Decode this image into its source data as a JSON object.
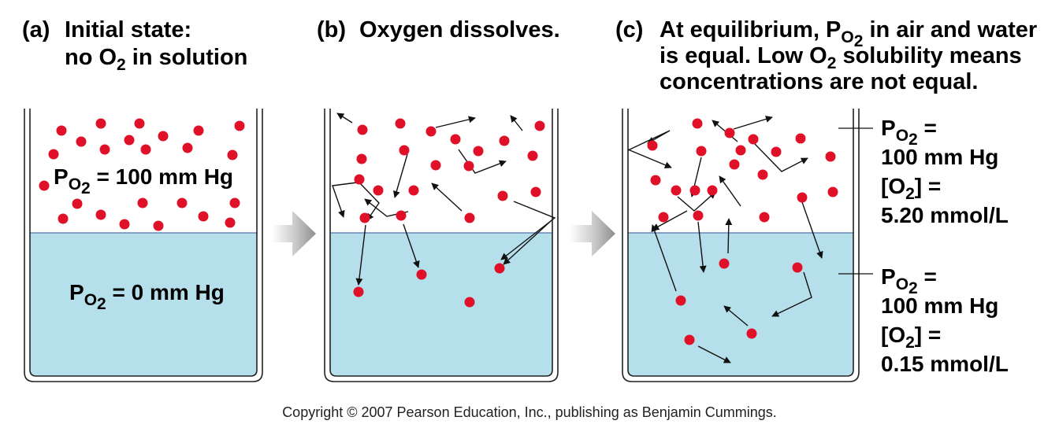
{
  "panels": [
    {
      "tag": "(a)",
      "title_lines": [
        {
          "parts": [
            {
              "t": "Initial state:"
            }
          ]
        },
        {
          "parts": [
            {
              "t": "no O"
            },
            {
              "t": "2",
              "sub": true
            },
            {
              "t": " in solution"
            }
          ]
        }
      ],
      "air_label": {
        "parts": [
          {
            "t": "P"
          },
          {
            "t": "O",
            "sub": true
          },
          {
            "t": "2",
            "subsub": true
          },
          {
            "t": " = 100 mm Hg"
          }
        ]
      },
      "water_label": {
        "parts": [
          {
            "t": "P"
          },
          {
            "t": "O",
            "sub": true
          },
          {
            "t": "2",
            "subsub": true
          },
          {
            "t": " = 0 mm Hg"
          }
        ]
      }
    },
    {
      "tag": "(b)",
      "title_lines": [
        {
          "parts": [
            {
              "t": "Oxygen dissolves."
            }
          ]
        }
      ]
    },
    {
      "tag": "(c)",
      "title_lines": [
        {
          "parts": [
            {
              "t": "At equilibrium, P"
            },
            {
              "t": "O",
              "sub": true
            },
            {
              "t": "2",
              "subsub": true
            },
            {
              "t": " in air and water"
            }
          ]
        },
        {
          "parts": [
            {
              "t": "is equal. Low O"
            },
            {
              "t": "2",
              "sub": true
            },
            {
              "t": " solubility means"
            }
          ]
        },
        {
          "parts": [
            {
              "t": "concentrations are not equal."
            }
          ]
        }
      ],
      "air_side_lines": [
        {
          "parts": [
            {
              "t": "P"
            },
            {
              "t": "O",
              "sub": true
            },
            {
              "t": "2",
              "subsub": true
            },
            {
              "t": " ="
            }
          ]
        },
        {
          "parts": [
            {
              "t": "100 mm Hg"
            }
          ]
        },
        {
          "parts": [
            {
              "t": "[O"
            },
            {
              "t": "2",
              "sub": true
            },
            {
              "t": "] ="
            }
          ]
        },
        {
          "parts": [
            {
              "t": "5.20 mmol/L"
            }
          ]
        }
      ],
      "water_side_lines": [
        {
          "parts": [
            {
              "t": "P"
            },
            {
              "t": "O",
              "sub": true
            },
            {
              "t": "2",
              "subsub": true
            },
            {
              "t": " ="
            }
          ]
        },
        {
          "parts": [
            {
              "t": "100 mm Hg"
            }
          ]
        },
        {
          "parts": [
            {
              "t": "[O"
            },
            {
              "t": "2",
              "sub": true
            },
            {
              "t": "] ="
            }
          ]
        },
        {
          "parts": [
            {
              "t": "0.15 mmol/L"
            }
          ]
        }
      ]
    }
  ],
  "copyright": "Copyright © 2007 Pearson Education, Inc., publishing as Benjamin Cummings.",
  "colors": {
    "water": "#b5dfea",
    "molecule": "#e01028",
    "beaker_edge": "#222222",
    "water_surface": "#6a86b8",
    "process_arrow": "#9a9a9a"
  }
}
